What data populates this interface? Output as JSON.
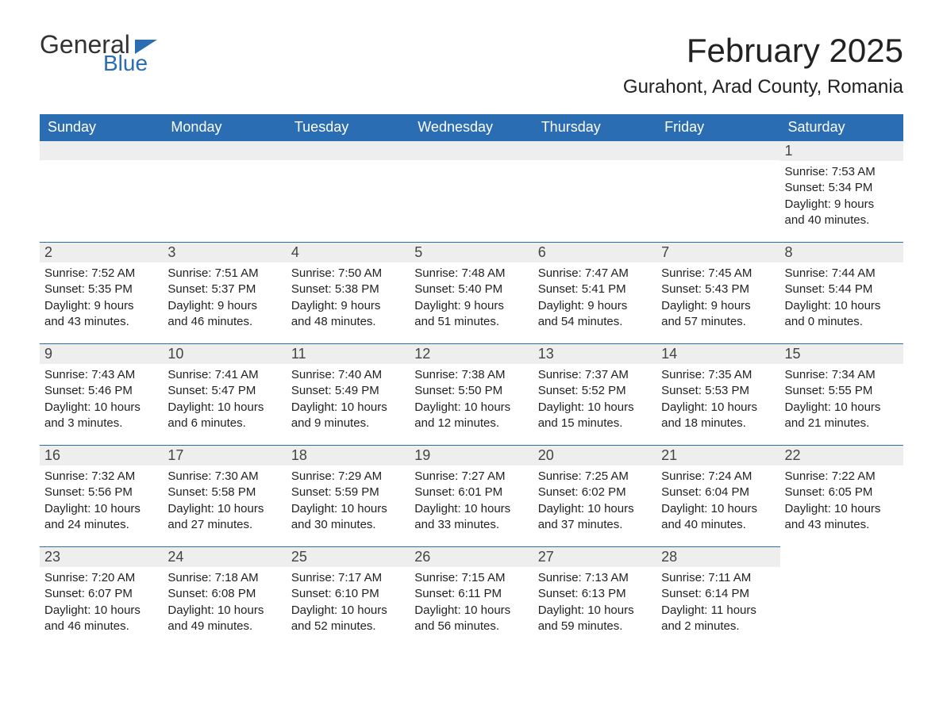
{
  "logo_general": "General",
  "logo_blue": "Blue",
  "title": "February 2025",
  "location": "Gurahont, Arad County, Romania",
  "header_bg": "#2a6db2",
  "header_fg": "#ffffff",
  "daynum_bg": "#eeeeee",
  "daynum_border": "#2a6db2",
  "text_color": "#222222",
  "weekdays": [
    "Sunday",
    "Monday",
    "Tuesday",
    "Wednesday",
    "Thursday",
    "Friday",
    "Saturday"
  ],
  "weeks": [
    [
      null,
      null,
      null,
      null,
      null,
      null,
      {
        "n": "1",
        "sunrise": "Sunrise: 7:53 AM",
        "sunset": "Sunset: 5:34 PM",
        "day1": "Daylight: 9 hours",
        "day2": "and 40 minutes."
      }
    ],
    [
      {
        "n": "2",
        "sunrise": "Sunrise: 7:52 AM",
        "sunset": "Sunset: 5:35 PM",
        "day1": "Daylight: 9 hours",
        "day2": "and 43 minutes."
      },
      {
        "n": "3",
        "sunrise": "Sunrise: 7:51 AM",
        "sunset": "Sunset: 5:37 PM",
        "day1": "Daylight: 9 hours",
        "day2": "and 46 minutes."
      },
      {
        "n": "4",
        "sunrise": "Sunrise: 7:50 AM",
        "sunset": "Sunset: 5:38 PM",
        "day1": "Daylight: 9 hours",
        "day2": "and 48 minutes."
      },
      {
        "n": "5",
        "sunrise": "Sunrise: 7:48 AM",
        "sunset": "Sunset: 5:40 PM",
        "day1": "Daylight: 9 hours",
        "day2": "and 51 minutes."
      },
      {
        "n": "6",
        "sunrise": "Sunrise: 7:47 AM",
        "sunset": "Sunset: 5:41 PM",
        "day1": "Daylight: 9 hours",
        "day2": "and 54 minutes."
      },
      {
        "n": "7",
        "sunrise": "Sunrise: 7:45 AM",
        "sunset": "Sunset: 5:43 PM",
        "day1": "Daylight: 9 hours",
        "day2": "and 57 minutes."
      },
      {
        "n": "8",
        "sunrise": "Sunrise: 7:44 AM",
        "sunset": "Sunset: 5:44 PM",
        "day1": "Daylight: 10 hours",
        "day2": "and 0 minutes."
      }
    ],
    [
      {
        "n": "9",
        "sunrise": "Sunrise: 7:43 AM",
        "sunset": "Sunset: 5:46 PM",
        "day1": "Daylight: 10 hours",
        "day2": "and 3 minutes."
      },
      {
        "n": "10",
        "sunrise": "Sunrise: 7:41 AM",
        "sunset": "Sunset: 5:47 PM",
        "day1": "Daylight: 10 hours",
        "day2": "and 6 minutes."
      },
      {
        "n": "11",
        "sunrise": "Sunrise: 7:40 AM",
        "sunset": "Sunset: 5:49 PM",
        "day1": "Daylight: 10 hours",
        "day2": "and 9 minutes."
      },
      {
        "n": "12",
        "sunrise": "Sunrise: 7:38 AM",
        "sunset": "Sunset: 5:50 PM",
        "day1": "Daylight: 10 hours",
        "day2": "and 12 minutes."
      },
      {
        "n": "13",
        "sunrise": "Sunrise: 7:37 AM",
        "sunset": "Sunset: 5:52 PM",
        "day1": "Daylight: 10 hours",
        "day2": "and 15 minutes."
      },
      {
        "n": "14",
        "sunrise": "Sunrise: 7:35 AM",
        "sunset": "Sunset: 5:53 PM",
        "day1": "Daylight: 10 hours",
        "day2": "and 18 minutes."
      },
      {
        "n": "15",
        "sunrise": "Sunrise: 7:34 AM",
        "sunset": "Sunset: 5:55 PM",
        "day1": "Daylight: 10 hours",
        "day2": "and 21 minutes."
      }
    ],
    [
      {
        "n": "16",
        "sunrise": "Sunrise: 7:32 AM",
        "sunset": "Sunset: 5:56 PM",
        "day1": "Daylight: 10 hours",
        "day2": "and 24 minutes."
      },
      {
        "n": "17",
        "sunrise": "Sunrise: 7:30 AM",
        "sunset": "Sunset: 5:58 PM",
        "day1": "Daylight: 10 hours",
        "day2": "and 27 minutes."
      },
      {
        "n": "18",
        "sunrise": "Sunrise: 7:29 AM",
        "sunset": "Sunset: 5:59 PM",
        "day1": "Daylight: 10 hours",
        "day2": "and 30 minutes."
      },
      {
        "n": "19",
        "sunrise": "Sunrise: 7:27 AM",
        "sunset": "Sunset: 6:01 PM",
        "day1": "Daylight: 10 hours",
        "day2": "and 33 minutes."
      },
      {
        "n": "20",
        "sunrise": "Sunrise: 7:25 AM",
        "sunset": "Sunset: 6:02 PM",
        "day1": "Daylight: 10 hours",
        "day2": "and 37 minutes."
      },
      {
        "n": "21",
        "sunrise": "Sunrise: 7:24 AM",
        "sunset": "Sunset: 6:04 PM",
        "day1": "Daylight: 10 hours",
        "day2": "and 40 minutes."
      },
      {
        "n": "22",
        "sunrise": "Sunrise: 7:22 AM",
        "sunset": "Sunset: 6:05 PM",
        "day1": "Daylight: 10 hours",
        "day2": "and 43 minutes."
      }
    ],
    [
      {
        "n": "23",
        "sunrise": "Sunrise: 7:20 AM",
        "sunset": "Sunset: 6:07 PM",
        "day1": "Daylight: 10 hours",
        "day2": "and 46 minutes."
      },
      {
        "n": "24",
        "sunrise": "Sunrise: 7:18 AM",
        "sunset": "Sunset: 6:08 PM",
        "day1": "Daylight: 10 hours",
        "day2": "and 49 minutes."
      },
      {
        "n": "25",
        "sunrise": "Sunrise: 7:17 AM",
        "sunset": "Sunset: 6:10 PM",
        "day1": "Daylight: 10 hours",
        "day2": "and 52 minutes."
      },
      {
        "n": "26",
        "sunrise": "Sunrise: 7:15 AM",
        "sunset": "Sunset: 6:11 PM",
        "day1": "Daylight: 10 hours",
        "day2": "and 56 minutes."
      },
      {
        "n": "27",
        "sunrise": "Sunrise: 7:13 AM",
        "sunset": "Sunset: 6:13 PM",
        "day1": "Daylight: 10 hours",
        "day2": "and 59 minutes."
      },
      {
        "n": "28",
        "sunrise": "Sunrise: 7:11 AM",
        "sunset": "Sunset: 6:14 PM",
        "day1": "Daylight: 11 hours",
        "day2": "and 2 minutes."
      },
      null
    ]
  ]
}
